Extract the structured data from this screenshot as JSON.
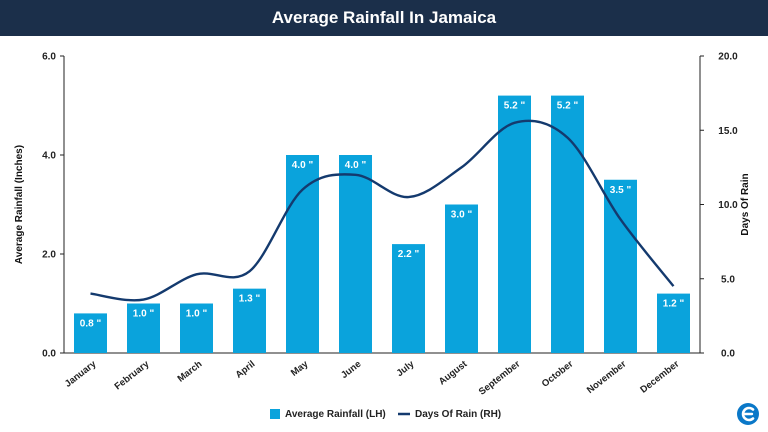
{
  "page": {
    "title": "Average Rainfall In Jamaica"
  },
  "colors": {
    "header_bg": "#1b2f4a",
    "bar": "#0aa3dc",
    "line": "#143a6e",
    "logo": "#0a78c8"
  },
  "icons": {
    "logo": "brand-logo-icon"
  },
  "chart_data": {
    "type": "bar",
    "title": "Average Rainfall In Jamaica",
    "categories": [
      "January",
      "February",
      "March",
      "April",
      "May",
      "June",
      "July",
      "August",
      "September",
      "October",
      "November",
      "December"
    ],
    "series": [
      {
        "name": "Average Rainfall (LH)",
        "type": "bar",
        "axis": "left",
        "values": [
          0.8,
          1.0,
          1.0,
          1.3,
          4.0,
          4.0,
          2.2,
          3.0,
          5.2,
          5.2,
          3.5,
          1.2
        ],
        "labels": [
          "0.8 \"",
          "1.0 \"",
          "1.0 \"",
          "1.3 \"",
          "4.0 \"",
          "4.0 \"",
          "2.2 \"",
          "3.0 \"",
          "5.2 \"",
          "5.2 \"",
          "3.5 \"",
          "1.2 \""
        ]
      },
      {
        "name": "Days Of Rain (RH)",
        "type": "line",
        "axis": "right",
        "smooth": true,
        "values": [
          4,
          3.6,
          5.3,
          5.5,
          11,
          12,
          10.5,
          12.5,
          15.5,
          14.5,
          9,
          4.5
        ]
      }
    ],
    "ylabel": "Average Rainfall (Inches)",
    "y2label": "Days Of Rain",
    "ylim": [
      0,
      6
    ],
    "y2lim": [
      0,
      20
    ],
    "yticks": [
      "0.0",
      "2.0",
      "4.0",
      "6.0"
    ],
    "y2ticks": [
      "0.0",
      "5.0",
      "10.0",
      "15.0",
      "20.0"
    ],
    "grid": false,
    "legend_position": "bottom"
  }
}
